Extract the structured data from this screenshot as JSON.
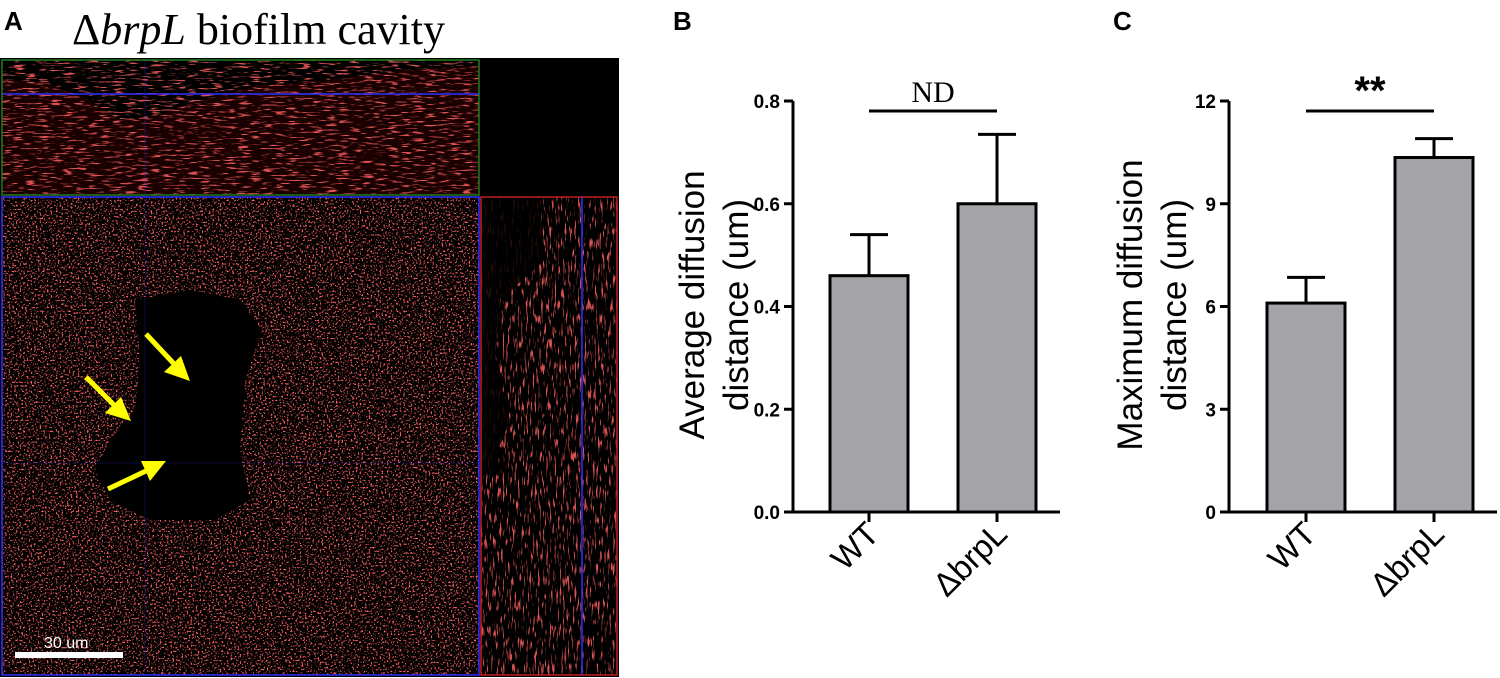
{
  "panel_a": {
    "letter": "A",
    "title_prefix": "Δ",
    "title_italic": "brpL",
    "title_suffix": " biofilm cavity",
    "scale_bar_label": "30 um",
    "colors": {
      "signal": "#ff2a2a",
      "background": "#000000",
      "arrow": "#ffff00",
      "crosshair_blue": "#3030ff",
      "border_green": "#1f7a1f",
      "border_red": "#c02020"
    },
    "arrows": 3
  },
  "chart_data": [
    {
      "type": "bar",
      "panel": "B",
      "categories": [
        "WT",
        "ΔbrpL"
      ],
      "values": [
        0.46,
        0.6
      ],
      "errors": [
        0.08,
        0.135
      ],
      "ylabel_line1": "Average diffusion",
      "ylabel_line2": "distance (um)",
      "ylim": [
        0,
        0.8
      ],
      "yticks": [
        "0.0",
        "0.2",
        "0.4",
        "0.6",
        "0.8"
      ],
      "significance": "ND",
      "bar_color": "#a3a3a8"
    },
    {
      "type": "bar",
      "panel": "C",
      "categories": [
        "WT",
        "ΔbrpL"
      ],
      "values": [
        6.1,
        10.35
      ],
      "errors": [
        0.75,
        0.55
      ],
      "ylabel_line1": "Maximum diffusion",
      "ylabel_line2": "distance (um)",
      "ylim": [
        0,
        12
      ],
      "yticks": [
        "0",
        "3",
        "6",
        "9",
        "12"
      ],
      "significance": "**",
      "bar_color": "#a3a3a8"
    }
  ]
}
